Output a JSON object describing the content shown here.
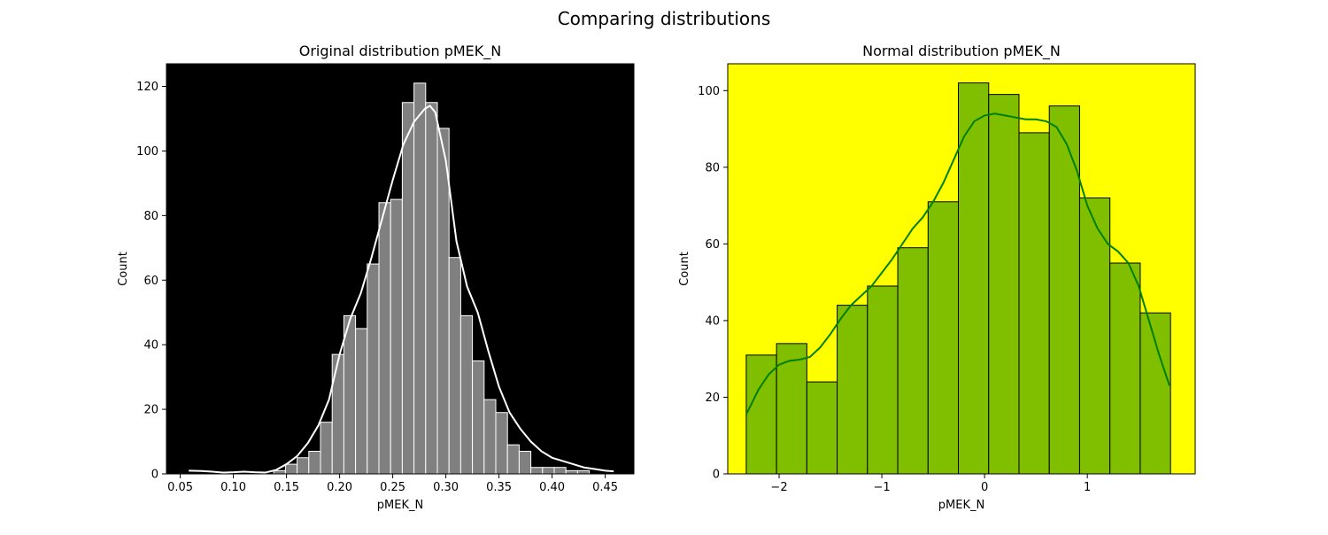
{
  "figure": {
    "suptitle": "Comparing distributions"
  },
  "chart_data": [
    {
      "type": "bar",
      "subtype": "histogram-with-kde",
      "title": "Original distribution pMEK_N",
      "xlabel": "pMEK_N",
      "ylabel": "Count",
      "xlim": [
        0.037,
        0.477
      ],
      "ylim": [
        0,
        127
      ],
      "xticks": [
        0.05,
        0.1,
        0.15,
        0.2,
        0.25,
        0.3,
        0.35,
        0.4,
        0.45
      ],
      "xtick_labels": [
        "0.05",
        "0.10",
        "0.15",
        "0.20",
        "0.25",
        "0.30",
        "0.35",
        "0.40",
        "0.45"
      ],
      "yticks": [
        0,
        20,
        40,
        60,
        80,
        100,
        120
      ],
      "ytick_labels": [
        "0",
        "20",
        "40",
        "60",
        "80",
        "100",
        "120"
      ],
      "grid": false,
      "colors": {
        "background": "#000000",
        "bar_fill": "#808080",
        "bar_edge": "#ffffff",
        "kde_line": "#ffffff"
      },
      "bins": {
        "x0": [
          0.138,
          0.149,
          0.16,
          0.171,
          0.182,
          0.193,
          0.204,
          0.215,
          0.226,
          0.237,
          0.248,
          0.259,
          0.27,
          0.281,
          0.292,
          0.303,
          0.314,
          0.325,
          0.336,
          0.347,
          0.358,
          0.369,
          0.38,
          0.391,
          0.402,
          0.413,
          0.424
        ],
        "width": 0.011,
        "counts": [
          1,
          3,
          5,
          7,
          16,
          37,
          49,
          45,
          65,
          84,
          85,
          115,
          121,
          115,
          107,
          67,
          49,
          35,
          23,
          19,
          9,
          7,
          2,
          2,
          2,
          1,
          1
        ]
      },
      "kde": {
        "x": [
          0.058,
          0.07,
          0.08,
          0.09,
          0.1,
          0.11,
          0.12,
          0.13,
          0.14,
          0.15,
          0.16,
          0.17,
          0.18,
          0.19,
          0.2,
          0.21,
          0.22,
          0.23,
          0.24,
          0.25,
          0.26,
          0.27,
          0.28,
          0.285,
          0.29,
          0.3,
          0.31,
          0.32,
          0.33,
          0.34,
          0.35,
          0.36,
          0.37,
          0.38,
          0.39,
          0.4,
          0.41,
          0.42,
          0.43,
          0.44,
          0.45,
          0.458
        ],
        "y": [
          1,
          0.9,
          0.7,
          0.4,
          0.5,
          0.7,
          0.5,
          0.4,
          1.2,
          3,
          5.5,
          9.5,
          15,
          23,
          37,
          48,
          56,
          67,
          79,
          91,
          102,
          109,
          113,
          114,
          112,
          97,
          72,
          58,
          50,
          38,
          27,
          19,
          14,
          10,
          7,
          5,
          4,
          3,
          2,
          1.5,
          1,
          0.8
        ]
      }
    },
    {
      "type": "bar",
      "subtype": "histogram-with-kde",
      "title": "Normal distribution pMEK_N",
      "xlabel": "pMEK_N",
      "ylabel": "Count",
      "xlim": [
        -2.5,
        2.05
      ],
      "ylim": [
        0,
        107
      ],
      "xticks": [
        -2,
        -1,
        0,
        1
      ],
      "xtick_labels": [
        "−2",
        "−1",
        "0",
        "1"
      ],
      "yticks": [
        0,
        20,
        40,
        60,
        80,
        100
      ],
      "ytick_labels": [
        "0",
        "20",
        "40",
        "60",
        "80",
        "100"
      ],
      "grid": false,
      "colors": {
        "background": "#ffff00",
        "bar_fill": "#80be00",
        "bar_edge": "#000000",
        "kde_line": "#008000"
      },
      "bins": {
        "x0": [
          -2.32,
          -2.025,
          -1.73,
          -1.435,
          -1.14,
          -0.845,
          -0.55,
          -0.255,
          0.04,
          0.335,
          0.63,
          0.925,
          1.22,
          1.515
        ],
        "width": 0.295,
        "counts": [
          31,
          34,
          24,
          44,
          49,
          59,
          71,
          102,
          99,
          89,
          96,
          72,
          55,
          42
        ]
      },
      "kde": {
        "x": [
          -2.32,
          -2.2,
          -2.1,
          -2.0,
          -1.9,
          -1.8,
          -1.7,
          -1.6,
          -1.5,
          -1.4,
          -1.3,
          -1.2,
          -1.1,
          -1.0,
          -0.9,
          -0.8,
          -0.7,
          -0.6,
          -0.5,
          -0.4,
          -0.3,
          -0.2,
          -0.1,
          0.0,
          0.1,
          0.2,
          0.3,
          0.4,
          0.5,
          0.6,
          0.7,
          0.8,
          0.9,
          1.0,
          1.1,
          1.2,
          1.3,
          1.4,
          1.5,
          1.6,
          1.7,
          1.8
        ],
        "y": [
          15.5,
          22,
          26,
          28.5,
          29.5,
          29.8,
          30.5,
          33,
          36.5,
          40.5,
          44,
          46.5,
          49,
          52.5,
          56,
          60,
          64,
          67,
          71,
          76,
          82,
          88,
          92,
          93.5,
          94,
          93.5,
          93,
          92.5,
          92.5,
          92,
          90.5,
          86,
          79,
          70,
          64,
          60,
          58,
          55,
          49,
          40,
          31,
          23
        ]
      }
    }
  ]
}
